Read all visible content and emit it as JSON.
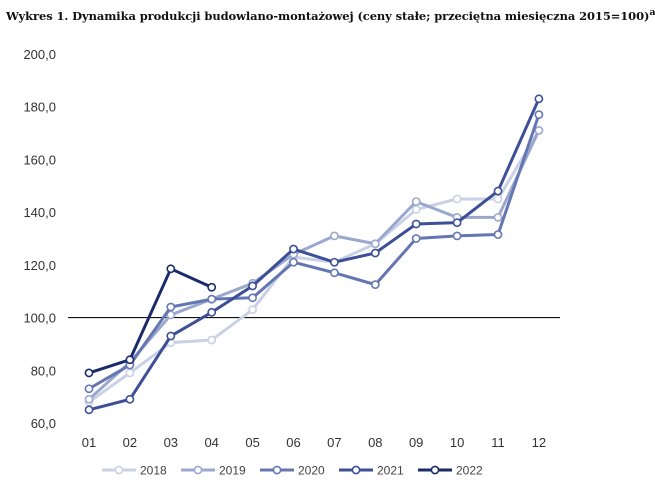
{
  "chart_data": {
    "type": "line",
    "title": "Wykres 1. Dynamika produkcji budowlano-montażowej (ceny stałe; przeciętna miesięczna 2015=100)",
    "title_suffix": "a",
    "xlabel": "",
    "ylabel": "",
    "categories": [
      "01",
      "02",
      "03",
      "04",
      "05",
      "06",
      "07",
      "08",
      "09",
      "10",
      "11",
      "12"
    ],
    "y_ticks": [
      "60,0",
      "80,0",
      "100,0",
      "120,0",
      "140,0",
      "160,0",
      "180,0",
      "200,0"
    ],
    "ylim": [
      60,
      200
    ],
    "reference_line": 100,
    "grid": false,
    "legend_position": "bottom",
    "series": [
      {
        "name": "2018",
        "color": "#c9d1e6",
        "values": [
          68,
          79,
          90.5,
          91.5,
          103,
          123,
          121,
          128,
          141,
          145,
          145,
          171
        ]
      },
      {
        "name": "2019",
        "color": "#9aa8cf",
        "values": [
          69,
          83,
          101,
          107,
          113,
          124,
          131,
          128,
          144,
          138,
          138,
          171
        ]
      },
      {
        "name": "2020",
        "color": "#6577b2",
        "values": [
          73,
          82,
          104,
          107,
          107.5,
          121,
          117,
          112.5,
          130,
          131,
          131.5,
          177
        ]
      },
      {
        "name": "2021",
        "color": "#3d4f96",
        "values": [
          65,
          69,
          93,
          102,
          112,
          126,
          121,
          124.5,
          135.5,
          136,
          148,
          183
        ]
      },
      {
        "name": "2022",
        "color": "#1b2a6b",
        "values": [
          79,
          84,
          118.5,
          111.5,
          null,
          null,
          null,
          null,
          null,
          null,
          null,
          null
        ]
      }
    ]
  }
}
